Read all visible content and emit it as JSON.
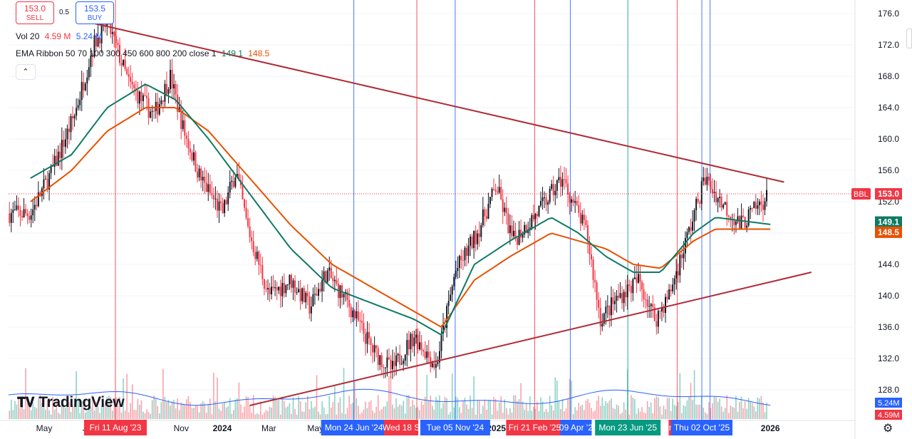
{
  "trade": {
    "sell_price": "153.0",
    "sell_label": "SELL",
    "spread": "0.5",
    "buy_price": "153.5",
    "buy_label": "BUY"
  },
  "legend": {
    "vol_label": "Vol 20",
    "vol_value_1": "4.59 M",
    "vol_value_2": "5.24 M",
    "ema_label": "EMA Ribbon 50 70 100 300 450 600 800 200 close 1",
    "ema_value_1": "149.1",
    "ema_value_2": "148.5",
    "collapse_icon": "chevron-up-icon"
  },
  "colors": {
    "up": "#131722",
    "down": "#f23645",
    "ema_fast": "#0f7a63",
    "ema_slow": "#e65100",
    "trendline": "#b22833",
    "vol_ma": "#2962ff",
    "price_line": "#f23645",
    "vline_red": "#f23645",
    "vline_blue": "#2962ff",
    "vline_green": "#089981"
  },
  "logo": {
    "text": "TradingView",
    "icon": "tradingview-logo-icon"
  },
  "settings_icon": "gear-icon",
  "chart_data": {
    "type": "candlestick",
    "symbol_tag": "BBL",
    "y_axis": {
      "min": 126,
      "max": 177,
      "ticks": [
        "176.0",
        "172.0",
        "168.0",
        "164.0",
        "160.0",
        "156.0",
        "152.0",
        "148.0",
        "144.0",
        "140.0",
        "136.0",
        "132.0",
        "128.0"
      ]
    },
    "x_axis_labels": [
      "May",
      "Jul",
      "Nov",
      "2024",
      "Mar",
      "May",
      "2025",
      "2026"
    ],
    "last_price": "153.0",
    "ema_values": [
      "149.1",
      "148.5"
    ],
    "volume_values": [
      "5.24M",
      "4.59M"
    ],
    "markers": [
      {
        "label": "Fri 11 Aug '23",
        "color": "#f23645"
      },
      {
        "label": "Mon 24 Jun '24",
        "color": "#2962ff"
      },
      {
        "label": "Wed 18 S",
        "color": "#f23645"
      },
      {
        "label": "Tue 05 Nov '24",
        "color": "#2962ff"
      },
      {
        "label": "Fri 21 Feb '25",
        "color": "#f23645"
      },
      {
        "label": "09 Apr '2",
        "color": "#2962ff"
      },
      {
        "label": "Mon 23 Jun '25",
        "color": "#089981"
      },
      {
        "label": "n 25",
        "color": "#f23645"
      },
      {
        "label": "Thu 02 Oct '25",
        "color": "#2962ff"
      }
    ],
    "price_path": [
      [
        2023.3,
        150.5
      ],
      [
        2023.38,
        156
      ],
      [
        2023.46,
        163
      ],
      [
        2023.53,
        172
      ],
      [
        2023.58,
        175
      ],
      [
        2023.66,
        167
      ],
      [
        2023.75,
        163
      ],
      [
        2023.81,
        168
      ],
      [
        2023.86,
        161
      ],
      [
        2023.92,
        155
      ],
      [
        2024.0,
        150.5
      ],
      [
        2024.05,
        156
      ],
      [
        2024.09,
        149
      ],
      [
        2024.17,
        140
      ],
      [
        2024.25,
        142
      ],
      [
        2024.32,
        138.5
      ],
      [
        2024.38,
        143
      ],
      [
        2024.46,
        139
      ],
      [
        2024.55,
        133
      ],
      [
        2024.62,
        130.5
      ],
      [
        2024.7,
        135
      ],
      [
        2024.78,
        131
      ],
      [
        2024.85,
        143
      ],
      [
        2024.93,
        148
      ],
      [
        2025.0,
        154
      ],
      [
        2025.06,
        147
      ],
      [
        2025.16,
        151
      ],
      [
        2025.24,
        155
      ],
      [
        2025.33,
        148
      ],
      [
        2025.38,
        137
      ],
      [
        2025.45,
        140
      ],
      [
        2025.52,
        142
      ],
      [
        2025.58,
        137
      ],
      [
        2025.63,
        140
      ],
      [
        2025.71,
        149
      ],
      [
        2025.76,
        155
      ],
      [
        2025.82,
        152
      ],
      [
        2025.89,
        149
      ],
      [
        2026.0,
        153
      ]
    ],
    "ema_fast_path": [
      [
        2023.3,
        155
      ],
      [
        2023.45,
        158
      ],
      [
        2023.58,
        164
      ],
      [
        2023.72,
        167
      ],
      [
        2023.83,
        165
      ],
      [
        2023.95,
        160
      ],
      [
        2024.1,
        153
      ],
      [
        2024.25,
        146
      ],
      [
        2024.4,
        141
      ],
      [
        2024.55,
        139
      ],
      [
        2024.7,
        137
      ],
      [
        2024.8,
        135
      ],
      [
        2024.92,
        144
      ],
      [
        2025.05,
        147
      ],
      [
        2025.2,
        150
      ],
      [
        2025.3,
        148
      ],
      [
        2025.4,
        145
      ],
      [
        2025.5,
        143
      ],
      [
        2025.6,
        143
      ],
      [
        2025.72,
        148
      ],
      [
        2025.8,
        150
      ],
      [
        2026.0,
        149.1
      ]
    ],
    "ema_slow_path": [
      [
        2023.3,
        152
      ],
      [
        2023.45,
        156
      ],
      [
        2023.58,
        161
      ],
      [
        2023.72,
        164
      ],
      [
        2023.83,
        164
      ],
      [
        2023.95,
        161
      ],
      [
        2024.1,
        155
      ],
      [
        2024.25,
        149
      ],
      [
        2024.4,
        144
      ],
      [
        2024.55,
        141
      ],
      [
        2024.7,
        138
      ],
      [
        2024.8,
        136
      ],
      [
        2024.92,
        142
      ],
      [
        2025.05,
        145
      ],
      [
        2025.2,
        148
      ],
      [
        2025.3,
        147
      ],
      [
        2025.4,
        146
      ],
      [
        2025.5,
        144
      ],
      [
        2025.6,
        143.5
      ],
      [
        2025.72,
        147
      ],
      [
        2025.8,
        148.5
      ],
      [
        2026.0,
        148.5
      ]
    ],
    "trendline_upper": [
      [
        2023.5,
        175
      ],
      [
        2026.05,
        154.5
      ]
    ],
    "trendline_lower": [
      [
        2024.1,
        126
      ],
      [
        2026.15,
        143
      ]
    ]
  }
}
